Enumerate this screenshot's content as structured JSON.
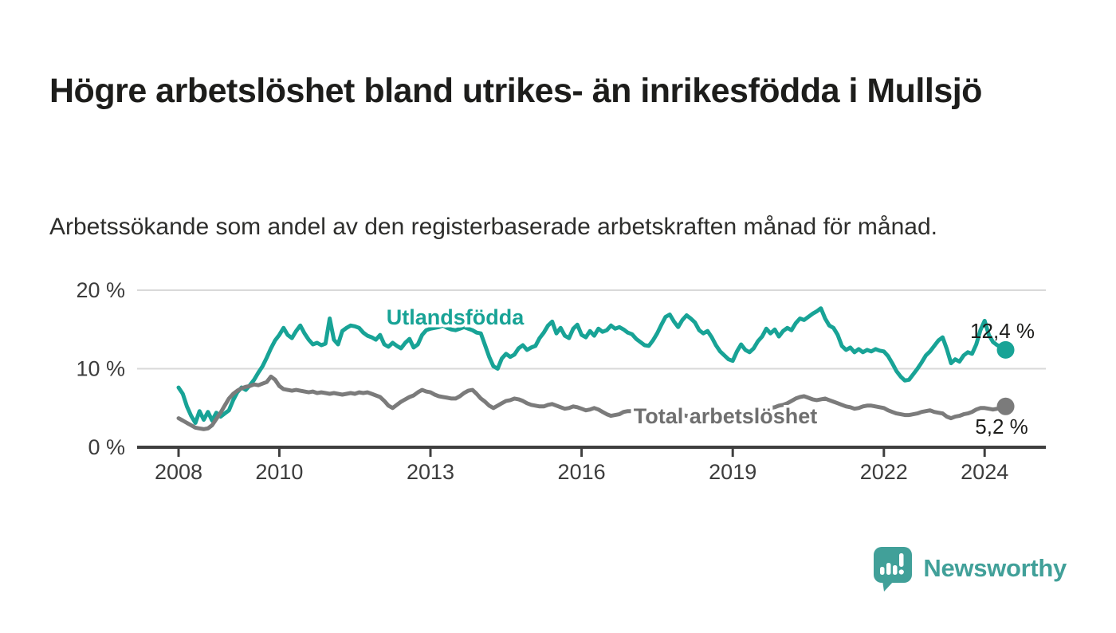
{
  "header": {
    "title": "Högre arbetslöshet bland utrikes- än inrikesfödda i Mullsjö",
    "subtitle": "Arbetssökande som andel av den registerbaserade arbetskraften månad för månad."
  },
  "footer": {
    "brand": "Newsworthy"
  },
  "colors": {
    "accent_teal": "#18a396",
    "series_gray": "#7b7b7b",
    "axis": "#3f3f3f",
    "grid": "#d9d9d9",
    "text_dark": "#1d1d1b",
    "tick_text": "#3c3c3c",
    "logo_teal": "#41a099"
  },
  "chart_data": {
    "type": "line",
    "title": "Högre arbetslöshet bland utrikes- än inrikesfödda i Mullsjö",
    "subtitle": "Arbetssökande som andel av den registerbaserade arbetskraften månad för månad.",
    "unit": "%",
    "grid": "horizontal",
    "legend_position": "inline-labels",
    "x_axis": {
      "ticks": [
        2008,
        2010,
        2013,
        2016,
        2019,
        2022,
        2024
      ],
      "range": [
        2007.2,
        2025.4
      ]
    },
    "y_axis": {
      "ticks": [
        0,
        10,
        20
      ],
      "tick_labels": [
        "0 %",
        "10 %",
        "20 %"
      ],
      "range": [
        0,
        21
      ]
    },
    "series": [
      {
        "name": "Utlandsfödda",
        "color": "#18a396",
        "end_label": "12,4 %",
        "end_value": 12.4,
        "cadence": "monthly",
        "start_year": 2008,
        "values": [
          7.6,
          6.8,
          5.2,
          4.0,
          3.1,
          4.6,
          3.5,
          4.5,
          3.4,
          4.4,
          3.9,
          4.3,
          4.7,
          6.0,
          7.0,
          7.6,
          7.3,
          7.9,
          8.6,
          9.5,
          10.3,
          11.4,
          12.6,
          13.6,
          14.3,
          15.2,
          14.3,
          13.9,
          14.8,
          15.5,
          14.5,
          13.7,
          13.1,
          13.3,
          13.0,
          13.2,
          16.4,
          13.7,
          13.1,
          14.8,
          15.2,
          15.5,
          15.4,
          15.2,
          14.6,
          14.2,
          14.0,
          13.7,
          14.3,
          13.1,
          12.8,
          13.3,
          12.9,
          12.6,
          13.3,
          13.8,
          12.7,
          13.1,
          14.3,
          14.9,
          15.1,
          15.2,
          15.3,
          15.5,
          15.2,
          15.0,
          14.9,
          15.1,
          15.3,
          15.1,
          14.9,
          14.6,
          14.5,
          13.0,
          11.5,
          10.3,
          10.0,
          11.3,
          11.9,
          11.5,
          11.8,
          12.6,
          13.0,
          12.4,
          12.7,
          12.9,
          13.9,
          14.6,
          15.5,
          16.0,
          14.5,
          15.2,
          14.2,
          13.9,
          15.1,
          15.6,
          14.3,
          14.0,
          14.8,
          14.2,
          15.1,
          14.7,
          14.9,
          15.5,
          15.1,
          15.3,
          15.0,
          14.6,
          14.4,
          13.8,
          13.4,
          13.0,
          12.9,
          13.6,
          14.5,
          15.6,
          16.6,
          16.9,
          16.0,
          15.3,
          16.2,
          16.8,
          16.4,
          15.9,
          14.9,
          14.5,
          14.8,
          14.0,
          13.0,
          12.2,
          11.7,
          11.2,
          11.0,
          12.2,
          13.1,
          12.4,
          12.1,
          12.6,
          13.5,
          14.1,
          15.1,
          14.5,
          15.0,
          14.1,
          14.8,
          15.2,
          14.9,
          15.8,
          16.4,
          16.2,
          16.6,
          17.0,
          17.3,
          17.7,
          16.4,
          15.5,
          15.2,
          14.3,
          12.9,
          12.4,
          12.7,
          12.1,
          12.5,
          12.1,
          12.4,
          12.2,
          12.5,
          12.3,
          12.2,
          11.6,
          10.7,
          9.7,
          9.0,
          8.5,
          8.6,
          9.3,
          10.0,
          10.8,
          11.7,
          12.2,
          12.9,
          13.6,
          14.0,
          12.5,
          10.7,
          11.2,
          10.9,
          11.7,
          12.1,
          11.9,
          13.1,
          14.9,
          16.1,
          14.3,
          13.4,
          13.0,
          12.8,
          12.4
        ]
      },
      {
        "name": "Total arbetslöshet",
        "color": "#7b7b7b",
        "end_label": "5,2 %",
        "end_value": 5.2,
        "cadence": "monthly",
        "start_year": 2008,
        "values": [
          3.7,
          3.4,
          3.1,
          2.8,
          2.5,
          2.4,
          2.3,
          2.4,
          2.8,
          3.6,
          4.4,
          5.3,
          6.2,
          6.8,
          7.2,
          7.5,
          7.7,
          7.8,
          8.0,
          7.9,
          8.1,
          8.3,
          9.0,
          8.6,
          7.8,
          7.4,
          7.3,
          7.2,
          7.3,
          7.2,
          7.1,
          7.0,
          7.1,
          6.9,
          7.0,
          6.9,
          6.8,
          6.9,
          6.8,
          6.7,
          6.8,
          6.9,
          6.8,
          7.0,
          6.9,
          7.0,
          6.8,
          6.6,
          6.4,
          5.9,
          5.3,
          5.0,
          5.4,
          5.8,
          6.1,
          6.4,
          6.6,
          7.0,
          7.3,
          7.1,
          7.0,
          6.7,
          6.5,
          6.4,
          6.3,
          6.2,
          6.2,
          6.5,
          6.9,
          7.2,
          7.3,
          6.8,
          6.2,
          5.8,
          5.3,
          5.0,
          5.3,
          5.6,
          5.9,
          6.0,
          6.2,
          6.1,
          5.9,
          5.6,
          5.4,
          5.3,
          5.2,
          5.2,
          5.4,
          5.5,
          5.3,
          5.1,
          4.9,
          5.0,
          5.2,
          5.1,
          4.9,
          4.7,
          4.8,
          5.0,
          4.8,
          4.5,
          4.2,
          4.0,
          4.1,
          4.2,
          4.5,
          4.6,
          4.6,
          4.5,
          4.4,
          4.3,
          4.2,
          4.1,
          4.1,
          4.0,
          4.0,
          4.1,
          4.1,
          4.1,
          4.1,
          4.0,
          4.0,
          3.9,
          3.9,
          3.8,
          3.8,
          3.9,
          3.9,
          4.0,
          4.0,
          4.0,
          4.0,
          4.1,
          4.1,
          4.2,
          4.3,
          4.4,
          4.5,
          4.7,
          4.8,
          5.0,
          5.1,
          5.3,
          5.4,
          5.6,
          5.9,
          6.2,
          6.4,
          6.5,
          6.3,
          6.1,
          6.0,
          6.1,
          6.2,
          6.0,
          5.8,
          5.6,
          5.4,
          5.2,
          5.1,
          4.9,
          5.0,
          5.2,
          5.3,
          5.3,
          5.2,
          5.1,
          5.0,
          4.7,
          4.5,
          4.3,
          4.2,
          4.1,
          4.1,
          4.2,
          4.3,
          4.5,
          4.6,
          4.7,
          4.5,
          4.4,
          4.3,
          3.9,
          3.7,
          3.9,
          4.0,
          4.2,
          4.3,
          4.5,
          4.8,
          5.0,
          5.0,
          4.9,
          4.8,
          4.9,
          5.1,
          5.2
        ]
      }
    ]
  }
}
